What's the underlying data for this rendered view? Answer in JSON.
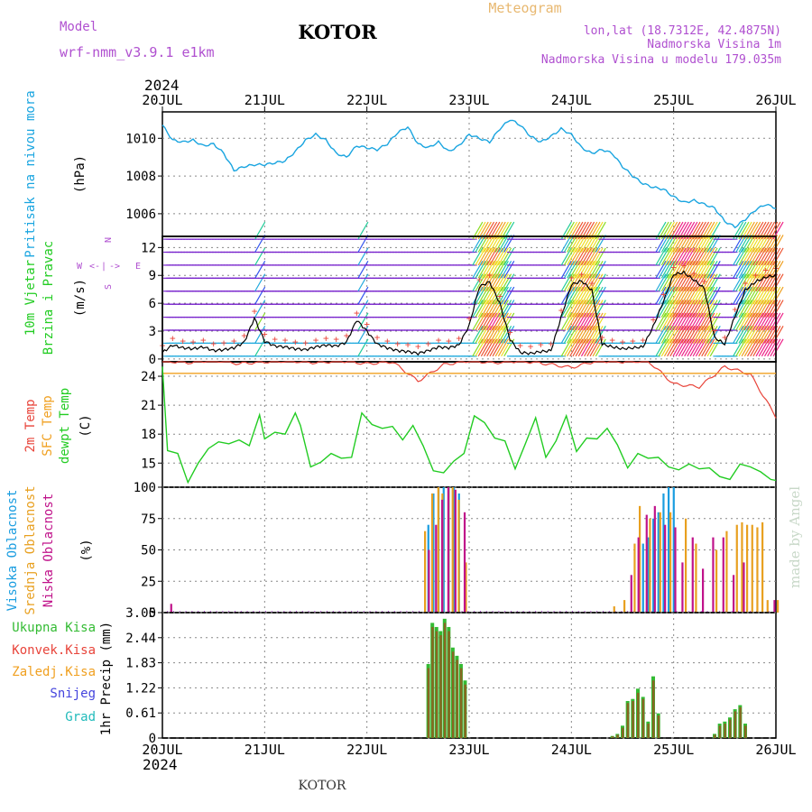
{
  "header": {
    "model_label": "Model",
    "model_name": "wrf-nmm_v3.9.1 e1km",
    "station": "KOTOR",
    "product": "Meteogram",
    "lonlat": "lon,lat (18.7312E, 42.4875N)",
    "elevation": "Nadmorska Visina 1m",
    "model_elevation": "Nadmorska Visina u modelu 179.035m",
    "year_top": "2024",
    "year_bottom": "2024",
    "footer_station": "KOTOR",
    "credit": "made by Angel"
  },
  "colors": {
    "pressure": "#1aa5e0",
    "temp2m": "#e8443a",
    "sfc_temp": "#f0a020",
    "dewpoint": "#22cc22",
    "cloud_high": "#1a9de0",
    "cloud_mid": "#e8a020",
    "cloud_low": "#c0138a",
    "rain_total": "#33bb33",
    "rain_conv": "#e8443a",
    "snow": "#4444dd",
    "graupel": "#22bbbb",
    "wind_speed_line": "#000000",
    "gust_marks": "#e8443a"
  },
  "chart_data": [
    {
      "type": "line",
      "panel": "pressure",
      "title": "",
      "ylabel_lines": [
        "Pritisak na nivou mora",
        "(hPa)"
      ],
      "x_ticks": [
        "20JUL",
        "21JUL",
        "22JUL",
        "23JUL",
        "24JUL",
        "25JUL",
        "26JUL"
      ],
      "ylim": [
        1004.8,
        1011.4
      ],
      "yticks": [
        1006,
        1008,
        1010
      ],
      "grid": true,
      "series": [
        {
          "name": "",
          "x": [
            0,
            0.1,
            0.2,
            0.3,
            0.4,
            0.5,
            0.6,
            0.7,
            0.8,
            0.9,
            1.0,
            1.1,
            1.2,
            1.3,
            1.4,
            1.5,
            1.6,
            1.7,
            1.8,
            1.9,
            2.0,
            2.1,
            2.2,
            2.3,
            2.4,
            2.5,
            2.6,
            2.7,
            2.8,
            2.9,
            3.0,
            3.1,
            3.2,
            3.3,
            3.4,
            3.5,
            3.6,
            3.7,
            3.8,
            3.9,
            4.0,
            4.1,
            4.2,
            4.3,
            4.4,
            4.5,
            4.6,
            4.7,
            4.8,
            4.9,
            5.0,
            5.1,
            5.2,
            5.3,
            5.4,
            5.5,
            5.6,
            5.7,
            5.8,
            5.9,
            6.0
          ],
          "values": [
            1010.7,
            1009.9,
            1009.8,
            1009.9,
            1009.6,
            1009.7,
            1009.2,
            1008.3,
            1008.5,
            1008.6,
            1008.6,
            1008.7,
            1008.8,
            1009.3,
            1009.9,
            1010.2,
            1009.9,
            1009.2,
            1009.0,
            1009.6,
            1009.5,
            1009.4,
            1009.7,
            1010.3,
            1010.6,
            1009.7,
            1009.5,
            1009.8,
            1009.3,
            1009.6,
            1010.2,
            1010.0,
            1009.8,
            1010.5,
            1011.0,
            1010.7,
            1010.1,
            1009.8,
            1010.1,
            1010.5,
            1010.2,
            1009.5,
            1009.2,
            1009.4,
            1009.2,
            1008.5,
            1008.0,
            1007.6,
            1007.4,
            1007.3,
            1006.9,
            1006.6,
            1006.7,
            1006.5,
            1006.3,
            1005.6,
            1005.3,
            1005.7,
            1006.2,
            1006.5,
            1006.3
          ]
        }
      ]
    },
    {
      "type": "line",
      "panel": "wind",
      "title": "",
      "ylabel_lines": [
        "10m Vjetar",
        "Brzina i Pravac",
        "(m/s)"
      ],
      "compass_labels": [
        "W",
        "<-",
        "|",
        "->",
        "E",
        "S",
        "N"
      ],
      "ylim": [
        -0.3,
        13.2
      ],
      "yticks": [
        0,
        3,
        6,
        9,
        12
      ],
      "grid": true,
      "series": [
        {
          "name": "",
          "x": [
            0,
            0.1,
            0.2,
            0.3,
            0.4,
            0.5,
            0.6,
            0.7,
            0.8,
            0.9,
            1.0,
            1.1,
            1.2,
            1.3,
            1.4,
            1.5,
            1.6,
            1.7,
            1.8,
            1.9,
            2.0,
            2.1,
            2.2,
            2.3,
            2.4,
            2.5,
            2.6,
            2.7,
            2.8,
            2.9,
            3.0,
            3.1,
            3.2,
            3.3,
            3.4,
            3.5,
            3.6,
            3.7,
            3.8,
            3.9,
            4.0,
            4.1,
            4.2,
            4.3,
            4.4,
            4.5,
            4.6,
            4.7,
            4.8,
            4.9,
            5.0,
            5.1,
            5.2,
            5.3,
            5.4,
            5.5,
            5.6,
            5.7,
            5.8,
            5.9,
            6.0
          ],
          "values": [
            0.7,
            1.5,
            1.2,
            1.1,
            1.3,
            0.9,
            1.0,
            1.2,
            1.8,
            4.4,
            1.9,
            1.4,
            1.3,
            1.1,
            1.0,
            1.3,
            1.5,
            1.4,
            1.8,
            4.2,
            3.0,
            1.6,
            1.2,
            0.9,
            0.8,
            0.6,
            0.9,
            1.3,
            1.2,
            1.5,
            3.6,
            7.8,
            8.3,
            6.0,
            2.1,
            0.7,
            0.6,
            0.8,
            0.9,
            4.5,
            8.0,
            8.4,
            7.4,
            1.6,
            1.3,
            1.1,
            1.2,
            1.3,
            3.5,
            6.2,
            9.1,
            9.3,
            8.5,
            7.6,
            2.3,
            1.6,
            4.6,
            7.4,
            8.3,
            8.8,
            9.0
          ]
        }
      ]
    },
    {
      "type": "line",
      "panel": "temperature",
      "title": "",
      "ylabel_lines": [
        "2m Temp",
        "SFC Temp",
        "dewpt Temp",
        "(C)"
      ],
      "ylim": [
        12.5,
        25.5
      ],
      "yticks": [
        15,
        18,
        21,
        24
      ],
      "grid": true,
      "series": [
        {
          "name": "2m Temp",
          "x": [
            0,
            0.25,
            0.5,
            0.75,
            1.0,
            1.25,
            1.5,
            1.75,
            2.0,
            2.25,
            2.5,
            2.75,
            3.0,
            3.25,
            3.5,
            3.75,
            4.0,
            4.25,
            4.5,
            4.75,
            5.0,
            5.25,
            5.5,
            5.75,
            6.0
          ],
          "values": [
            25.6,
            25.4,
            25.7,
            25.3,
            25.5,
            25.6,
            25.4,
            25.6,
            25.3,
            25.5,
            23.5,
            25.2,
            25.6,
            25.4,
            25.6,
            25.3,
            24.9,
            25.6,
            25.5,
            25.6,
            23.2,
            22.9,
            25.0,
            24.2,
            19.8
          ]
        },
        {
          "name": "SFC Temp",
          "x": [
            0,
            6.0
          ],
          "values": [
            24.3,
            24.3
          ]
        },
        {
          "name": "dewpt Temp",
          "x": [
            0,
            0.05,
            0.15,
            0.25,
            0.35,
            0.45,
            0.55,
            0.65,
            0.75,
            0.85,
            0.95,
            1.0,
            1.1,
            1.2,
            1.3,
            1.35,
            1.45,
            1.55,
            1.65,
            1.75,
            1.85,
            1.95,
            2.05,
            2.15,
            2.25,
            2.35,
            2.45,
            2.55,
            2.65,
            2.75,
            2.85,
            2.95,
            3.05,
            3.15,
            3.25,
            3.35,
            3.45,
            3.55,
            3.65,
            3.75,
            3.85,
            3.95,
            4.05,
            4.15,
            4.25,
            4.35,
            4.45,
            4.55,
            4.65,
            4.75,
            4.85,
            4.95,
            5.05,
            5.15,
            5.25,
            5.35,
            5.45,
            5.55,
            5.65,
            5.75,
            5.85,
            5.95,
            6.0
          ],
          "values": [
            25.0,
            16.3,
            16.0,
            13.0,
            15.0,
            16.5,
            17.2,
            17.0,
            17.4,
            16.8,
            20.0,
            17.5,
            18.2,
            18.0,
            20.2,
            18.9,
            14.6,
            15.1,
            16.0,
            15.5,
            15.6,
            20.2,
            19.0,
            18.6,
            18.8,
            17.4,
            18.9,
            16.8,
            14.2,
            14.0,
            15.2,
            16.0,
            19.9,
            19.2,
            17.6,
            17.3,
            14.4,
            17.0,
            19.7,
            15.6,
            17.3,
            19.9,
            16.2,
            17.6,
            17.5,
            18.6,
            16.9,
            14.5,
            16.0,
            15.5,
            15.6,
            14.6,
            14.3,
            14.9,
            14.4,
            14.5,
            13.6,
            13.3,
            14.9,
            14.6,
            14.1,
            13.3,
            13.2
          ]
        }
      ]
    },
    {
      "type": "bar",
      "panel": "clouds",
      "title": "",
      "ylabel_lines": [
        "Visoka Oblacnost",
        "Srednja Oblacnost",
        "Niska Oblacnost",
        "(%)"
      ],
      "ylim": [
        0,
        100
      ],
      "yticks": [
        0,
        25,
        50,
        75,
        100
      ],
      "grid": true,
      "series": [
        {
          "name": "Visoka Oblacnost",
          "x": [
            2.6,
            2.65,
            2.7,
            2.75,
            2.8,
            2.85,
            2.9,
            4.7,
            4.75,
            4.8,
            4.85,
            4.9,
            4.95,
            5.0
          ],
          "values": [
            70,
            95,
            100,
            100,
            100,
            100,
            95,
            55,
            60,
            75,
            80,
            95,
            100,
            100
          ]
        },
        {
          "name": "Srednja Oblacnost",
          "x": [
            2.55,
            2.62,
            2.68,
            2.72,
            2.78,
            2.82,
            2.88,
            2.95,
            4.4,
            4.5,
            4.6,
            4.65,
            4.75,
            4.85,
            4.95,
            5.1,
            5.2,
            5.4,
            5.5,
            5.6,
            5.65,
            5.7,
            5.75,
            5.8,
            5.85,
            5.9,
            6.0
          ],
          "values": [
            65,
            95,
            100,
            95,
            100,
            100,
            90,
            40,
            5,
            10,
            55,
            85,
            75,
            80,
            80,
            75,
            55,
            50,
            65,
            70,
            72,
            70,
            70,
            68,
            72,
            10,
            10
          ]
        },
        {
          "name": "Niska Oblacnost",
          "x": [
            0.05,
            2.57,
            2.64,
            2.7,
            2.76,
            2.83,
            2.92,
            4.55,
            4.62,
            4.7,
            4.78,
            4.88,
            4.98,
            5.05,
            5.15,
            5.25,
            5.35,
            5.45,
            5.55,
            5.65,
            5.95
          ],
          "values": [
            7,
            50,
            70,
            90,
            100,
            98,
            80,
            30,
            60,
            78,
            85,
            70,
            68,
            40,
            60,
            35,
            60,
            60,
            30,
            40,
            10
          ]
        }
      ]
    },
    {
      "type": "bar",
      "panel": "precipitation",
      "title": "",
      "ylabel_lines": [
        "Ukupna Kisa",
        "Konvek.Kisa",
        "Zaledj.Kisa",
        "Snijeg",
        "Grad",
        "1hr Precip (mm)"
      ],
      "ylim": [
        0,
        3.05
      ],
      "yticks": [
        "0",
        "0.61",
        "1.22",
        "1.83",
        "2.44",
        "3.05"
      ],
      "x_ticks": [
        "20JUL",
        "21JUL",
        "22JUL",
        "23JUL",
        "24JUL",
        "25JUL",
        "26JUL"
      ],
      "grid": true,
      "series": [
        {
          "name": "Ukupna Kisa",
          "x": [
            2.6,
            2.64,
            2.68,
            2.72,
            2.76,
            2.8,
            2.84,
            2.88,
            2.92,
            2.96,
            4.4,
            4.45,
            4.5,
            4.55,
            4.6,
            4.65,
            4.7,
            4.75,
            4.8,
            4.85,
            5.4,
            5.45,
            5.5,
            5.55,
            5.6,
            5.65,
            5.7
          ],
          "values": [
            1.8,
            2.8,
            2.7,
            2.6,
            2.9,
            2.7,
            2.2,
            2.0,
            1.8,
            1.4,
            0.05,
            0.1,
            0.3,
            0.9,
            0.95,
            1.2,
            1.0,
            0.4,
            1.5,
            0.6,
            0.1,
            0.35,
            0.4,
            0.5,
            0.7,
            0.8,
            0.35
          ]
        },
        {
          "name": "Konvek.Kisa",
          "x": [
            2.6,
            2.64,
            2.68,
            2.72,
            2.76,
            2.8,
            2.84,
            2.88,
            2.92,
            2.96,
            4.4,
            4.45,
            4.5,
            4.55,
            4.6,
            4.65,
            4.7,
            4.75,
            4.8,
            4.85,
            5.4,
            5.45,
            5.5,
            5.55,
            5.6,
            5.65,
            5.7
          ],
          "values": [
            1.7,
            2.7,
            2.6,
            2.5,
            2.8,
            2.6,
            2.1,
            1.9,
            1.7,
            1.3,
            0.04,
            0.08,
            0.25,
            0.85,
            0.9,
            1.1,
            0.95,
            0.35,
            1.4,
            0.55,
            0.08,
            0.3,
            0.35,
            0.45,
            0.65,
            0.75,
            0.3
          ]
        }
      ]
    }
  ]
}
